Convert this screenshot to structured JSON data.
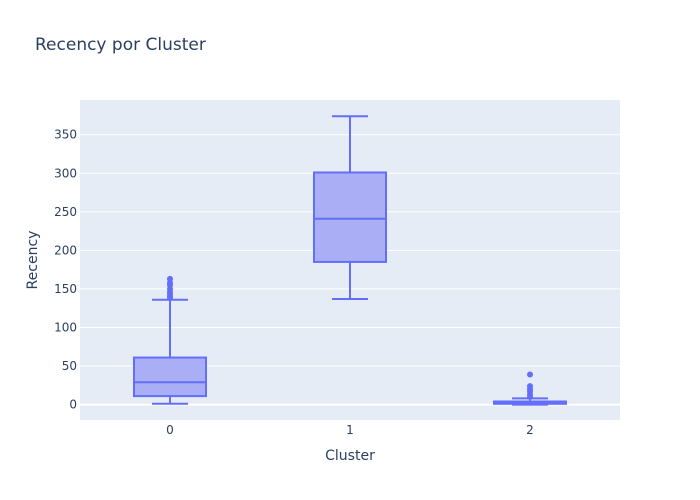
{
  "chart_data": {
    "type": "box",
    "title": "Recency por Cluster",
    "xlabel": "Cluster",
    "ylabel": "Recency",
    "categories": [
      "0",
      "1",
      "2"
    ],
    "ylim": [
      -20,
      395
    ],
    "yticks": [
      0,
      50,
      100,
      150,
      200,
      250,
      300,
      350
    ],
    "grid": true,
    "colors": {
      "box_line": "#636efa",
      "box_fill": "#a2a7f5",
      "plot_bg": "#e5ecf6",
      "grid": "#ffffff",
      "text": "#2a3f5f"
    },
    "boxes": [
      {
        "category": "0",
        "min": 1,
        "q1": 11,
        "median": 29,
        "q3": 61,
        "max": 136,
        "outliers": [
          138,
          140,
          143,
          146,
          150,
          155,
          158,
          163
        ]
      },
      {
        "category": "1",
        "min": 137,
        "q1": 185,
        "median": 241,
        "q3": 301,
        "max": 374,
        "outliers": []
      },
      {
        "category": "2",
        "min": 0,
        "q1": 1,
        "median": 2,
        "q3": 4,
        "max": 8,
        "outliers": [
          10,
          13,
          17,
          20,
          24,
          39
        ]
      }
    ]
  }
}
